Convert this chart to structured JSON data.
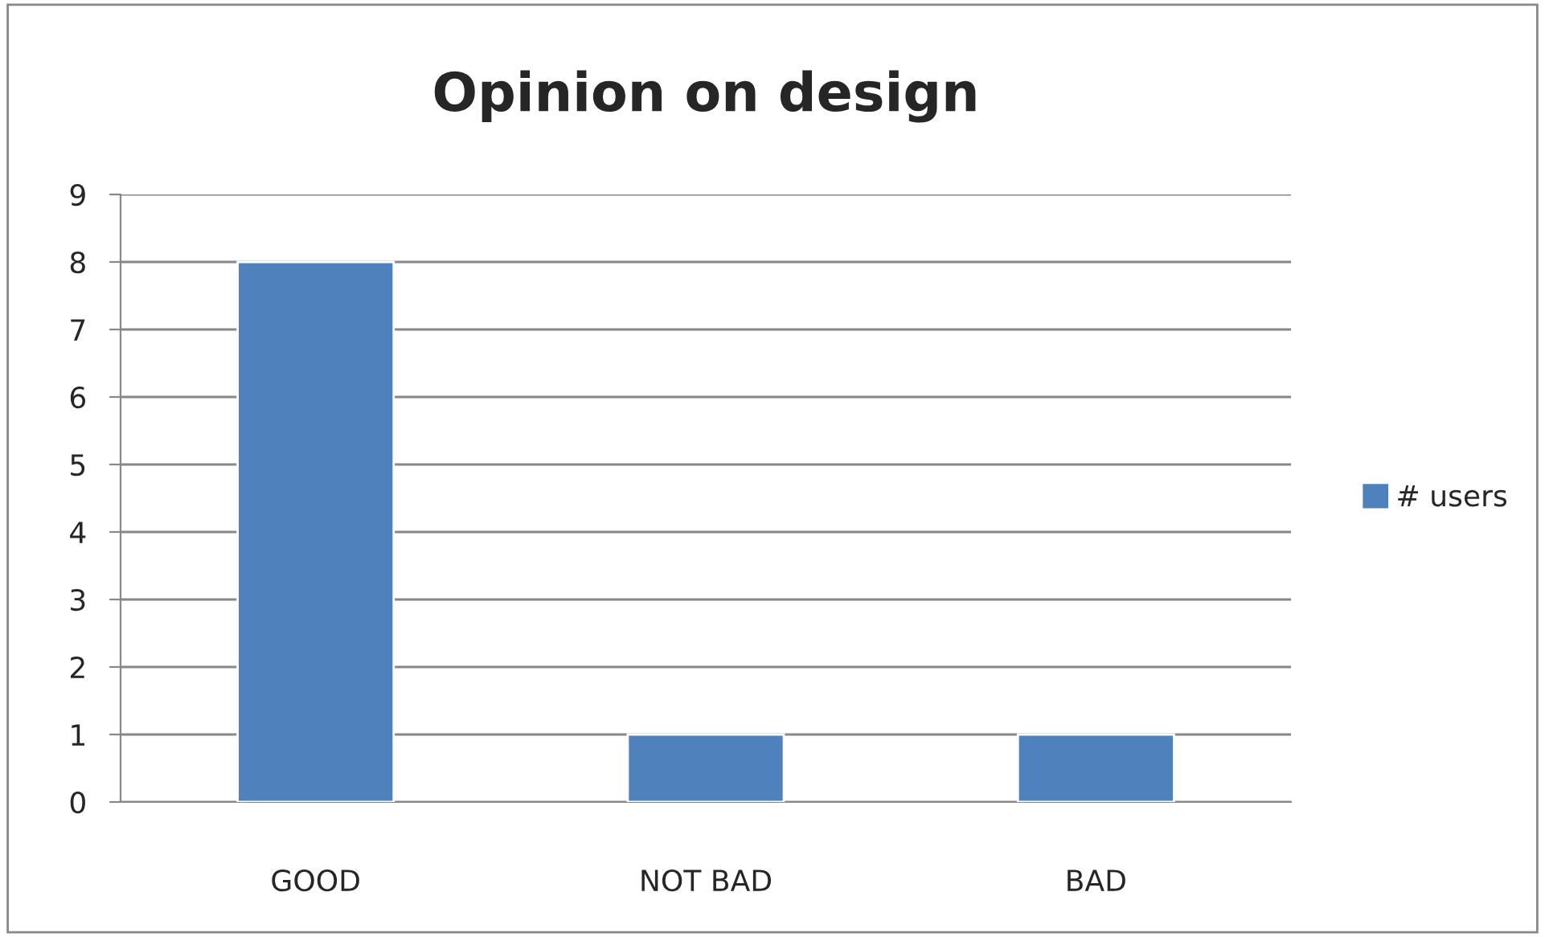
{
  "chart_data": {
    "type": "bar",
    "title": "Opinion on design",
    "categories": [
      "GOOD",
      "NOT BAD",
      "BAD"
    ],
    "series": [
      {
        "name": "# users",
        "color": "#4f81bd",
        "values": [
          8,
          1,
          1
        ]
      }
    ],
    "ylim": [
      0,
      9
    ],
    "yticks": [
      0,
      1,
      2,
      3,
      4,
      5,
      6,
      7,
      8,
      9
    ],
    "grid": "y",
    "legend": "right"
  }
}
